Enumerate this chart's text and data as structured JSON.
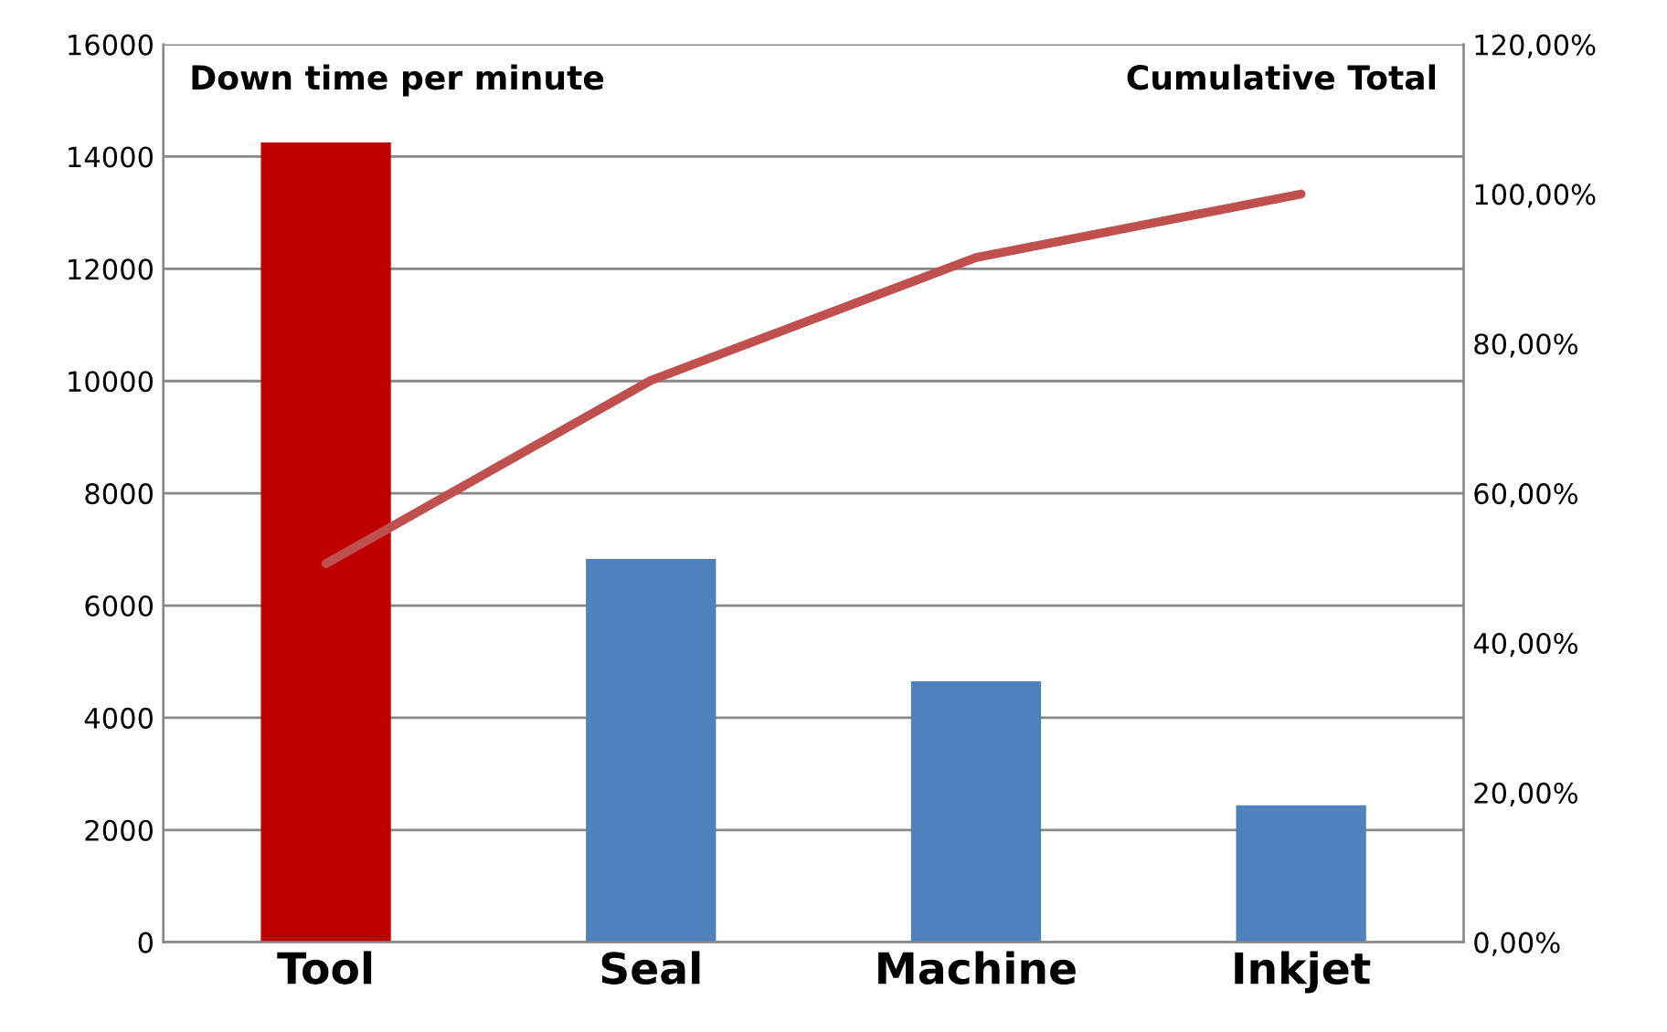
{
  "chart_data": {
    "type": "bar",
    "categories": [
      "Tool",
      "Seal",
      "Machine",
      "Inkjet"
    ],
    "series": [
      {
        "colors": [
          "#c00000",
          "#4f81bd",
          "#4f81bd",
          "#4f81bd"
        ],
        "values": [
          14250,
          6830,
          4650,
          2440
        ]
      },
      {
        "type": "line",
        "axis": "y2",
        "color": "#c0504d",
        "values": [
          50.6,
          75.1,
          91.5,
          100
        ]
      }
    ],
    "ylabel": "Down time per minute",
    "y2label": "Cumulative Total",
    "ylim": [
      0,
      16000
    ],
    "yticks": [
      0,
      2000,
      4000,
      6000,
      8000,
      10000,
      12000,
      14000,
      16000
    ],
    "y2lim": [
      0,
      120
    ],
    "y2ticks": [
      {
        "value": 0,
        "label": "0,00%"
      },
      {
        "value": 20,
        "label": "20,00%"
      },
      {
        "value": 40,
        "label": "40,00%"
      },
      {
        "value": 60,
        "label": "60,00%"
      },
      {
        "value": 80,
        "label": "80,00%"
      },
      {
        "value": 100,
        "label": "100,00%"
      },
      {
        "value": 120,
        "label": "120,00%"
      }
    ],
    "grid": "y",
    "marker": "none",
    "line_style": "solid"
  }
}
